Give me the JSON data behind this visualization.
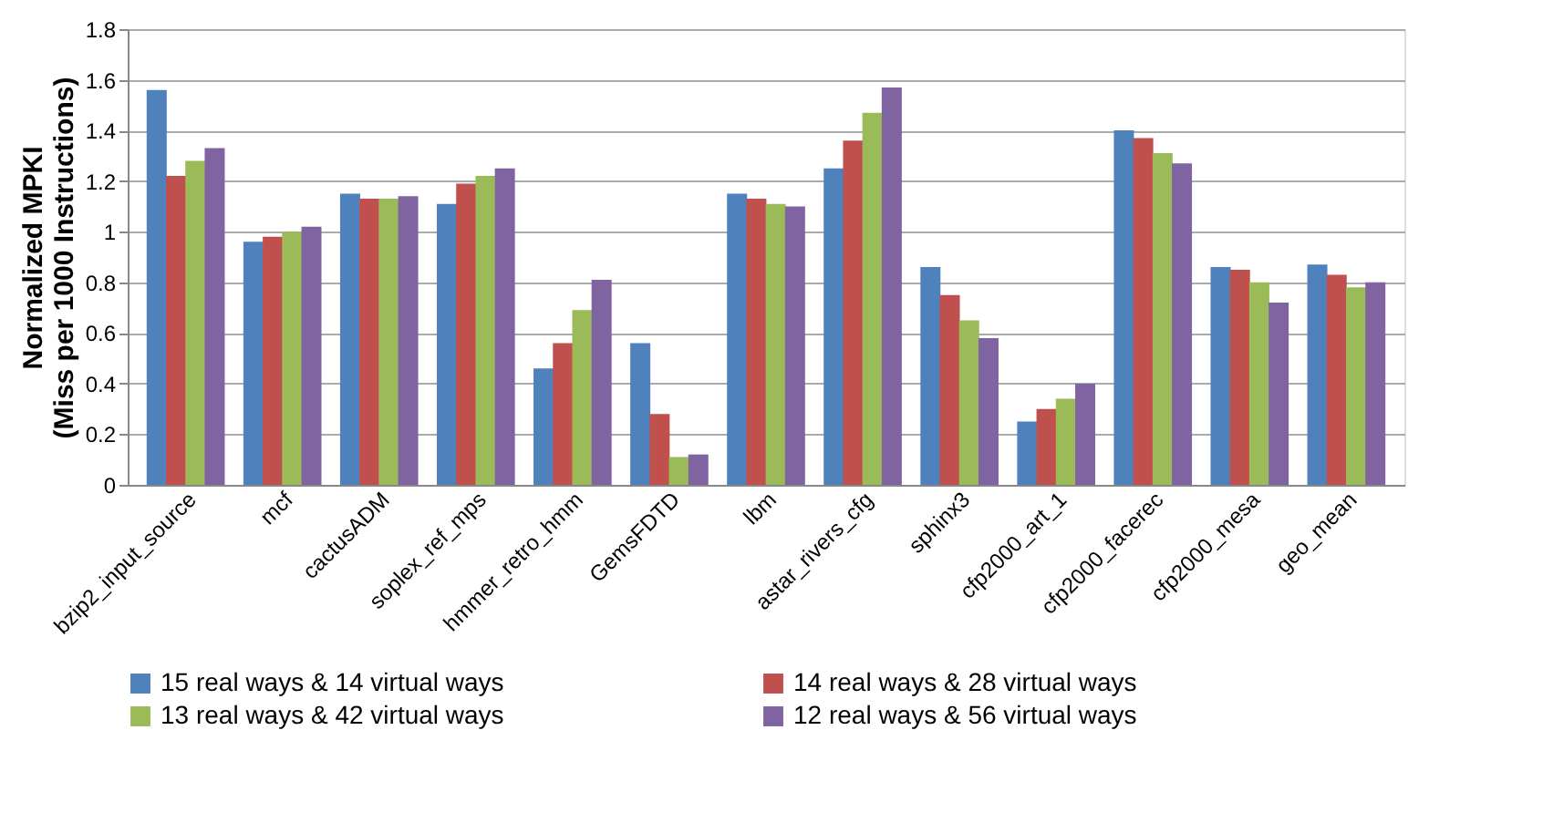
{
  "chart_data": {
    "type": "bar",
    "ylabel": "Normalized MPKI\n(Miss per 1000 Instructions)",
    "categories": [
      "bzip2_input_source",
      "mcf",
      "cactusADM",
      "soplex_ref_mps",
      "hmmer_retro_hmm",
      "GemsFDTD",
      "lbm",
      "astar_rivers_cfg",
      "sphinx3",
      "cfp2000_art_1",
      "cfp2000_facerec",
      "cfp2000_mesa",
      "geo_mean"
    ],
    "series": [
      {
        "name": "15 real ways & 14 virtual ways",
        "color": "#4f81bd",
        "values": [
          1.56,
          0.96,
          1.15,
          1.11,
          0.46,
          0.56,
          1.15,
          1.25,
          0.86,
          0.25,
          1.4,
          0.86,
          0.87
        ]
      },
      {
        "name": "14 real ways & 28 virtual ways",
        "color": "#c0504d",
        "values": [
          1.22,
          0.98,
          1.13,
          1.19,
          0.56,
          0.28,
          1.13,
          1.36,
          0.75,
          0.3,
          1.37,
          0.85,
          0.83
        ]
      },
      {
        "name": "13 real ways & 42 virtual ways",
        "color": "#9bbb59",
        "values": [
          1.28,
          1.0,
          1.13,
          1.22,
          0.69,
          0.11,
          1.11,
          1.47,
          0.65,
          0.34,
          1.31,
          0.8,
          0.78
        ]
      },
      {
        "name": "12 real ways & 56 virtual ways",
        "color": "#8064a2",
        "values": [
          1.33,
          1.02,
          1.14,
          1.25,
          0.81,
          0.12,
          1.1,
          1.57,
          0.58,
          0.4,
          1.27,
          0.72,
          0.8
        ]
      }
    ],
    "ylim": [
      0,
      1.8
    ],
    "yticks": [
      0,
      0.2,
      0.4,
      0.6,
      0.8,
      1,
      1.2,
      1.4,
      1.6,
      1.8
    ],
    "grid": "y",
    "legend": "bottom"
  }
}
